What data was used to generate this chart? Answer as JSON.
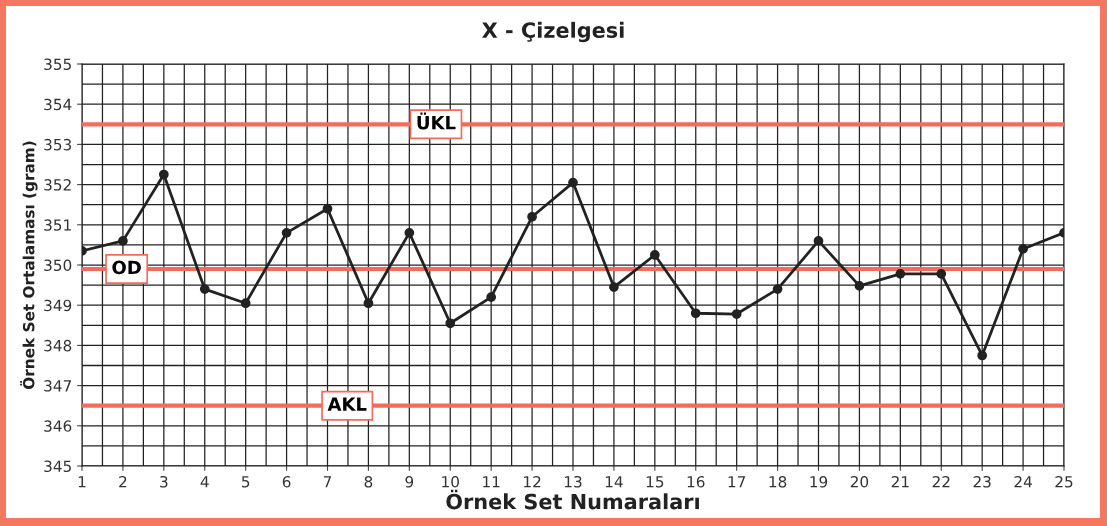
{
  "chart_data": {
    "type": "line",
    "title": "X - Çizelgesi",
    "xlabel": "Örnek Set Numaraları",
    "ylabel": "Örnek Set Ortalaması (gram)",
    "x": [
      1,
      2,
      3,
      4,
      5,
      6,
      7,
      8,
      9,
      10,
      11,
      12,
      13,
      14,
      15,
      16,
      17,
      18,
      19,
      20,
      21,
      22,
      23,
      24,
      25
    ],
    "series": [
      {
        "color": "#222222",
        "values": [
          350.35,
          350.6,
          352.25,
          349.4,
          349.05,
          350.8,
          351.4,
          349.05,
          350.8,
          348.55,
          349.2,
          351.2,
          352.05,
          349.45,
          350.25,
          348.8,
          348.78,
          349.4,
          350.6,
          349.48,
          349.78,
          349.78,
          347.75,
          350.4,
          350.8
        ]
      }
    ],
    "marker": "circle",
    "line_style": "solid",
    "grid": true,
    "xlim": [
      1,
      25
    ],
    "xticks": [
      1,
      2,
      3,
      4,
      5,
      6,
      7,
      8,
      9,
      10,
      11,
      12,
      13,
      14,
      15,
      16,
      17,
      18,
      19,
      20,
      21,
      22,
      23,
      24,
      25
    ],
    "ylim": [
      345,
      355
    ],
    "yticks": [
      345,
      346,
      347,
      348,
      349,
      350,
      351,
      352,
      353,
      354,
      355
    ],
    "ref_lines": [
      {
        "axis": "y",
        "value": 353.5,
        "label": "ÜKL",
        "color": "#f26b5b"
      },
      {
        "axis": "y",
        "value": 349.9,
        "label": "OD",
        "color": "#f26b5b"
      },
      {
        "axis": "y",
        "value": 346.5,
        "label": "AKL",
        "color": "#f26b5b"
      }
    ]
  }
}
